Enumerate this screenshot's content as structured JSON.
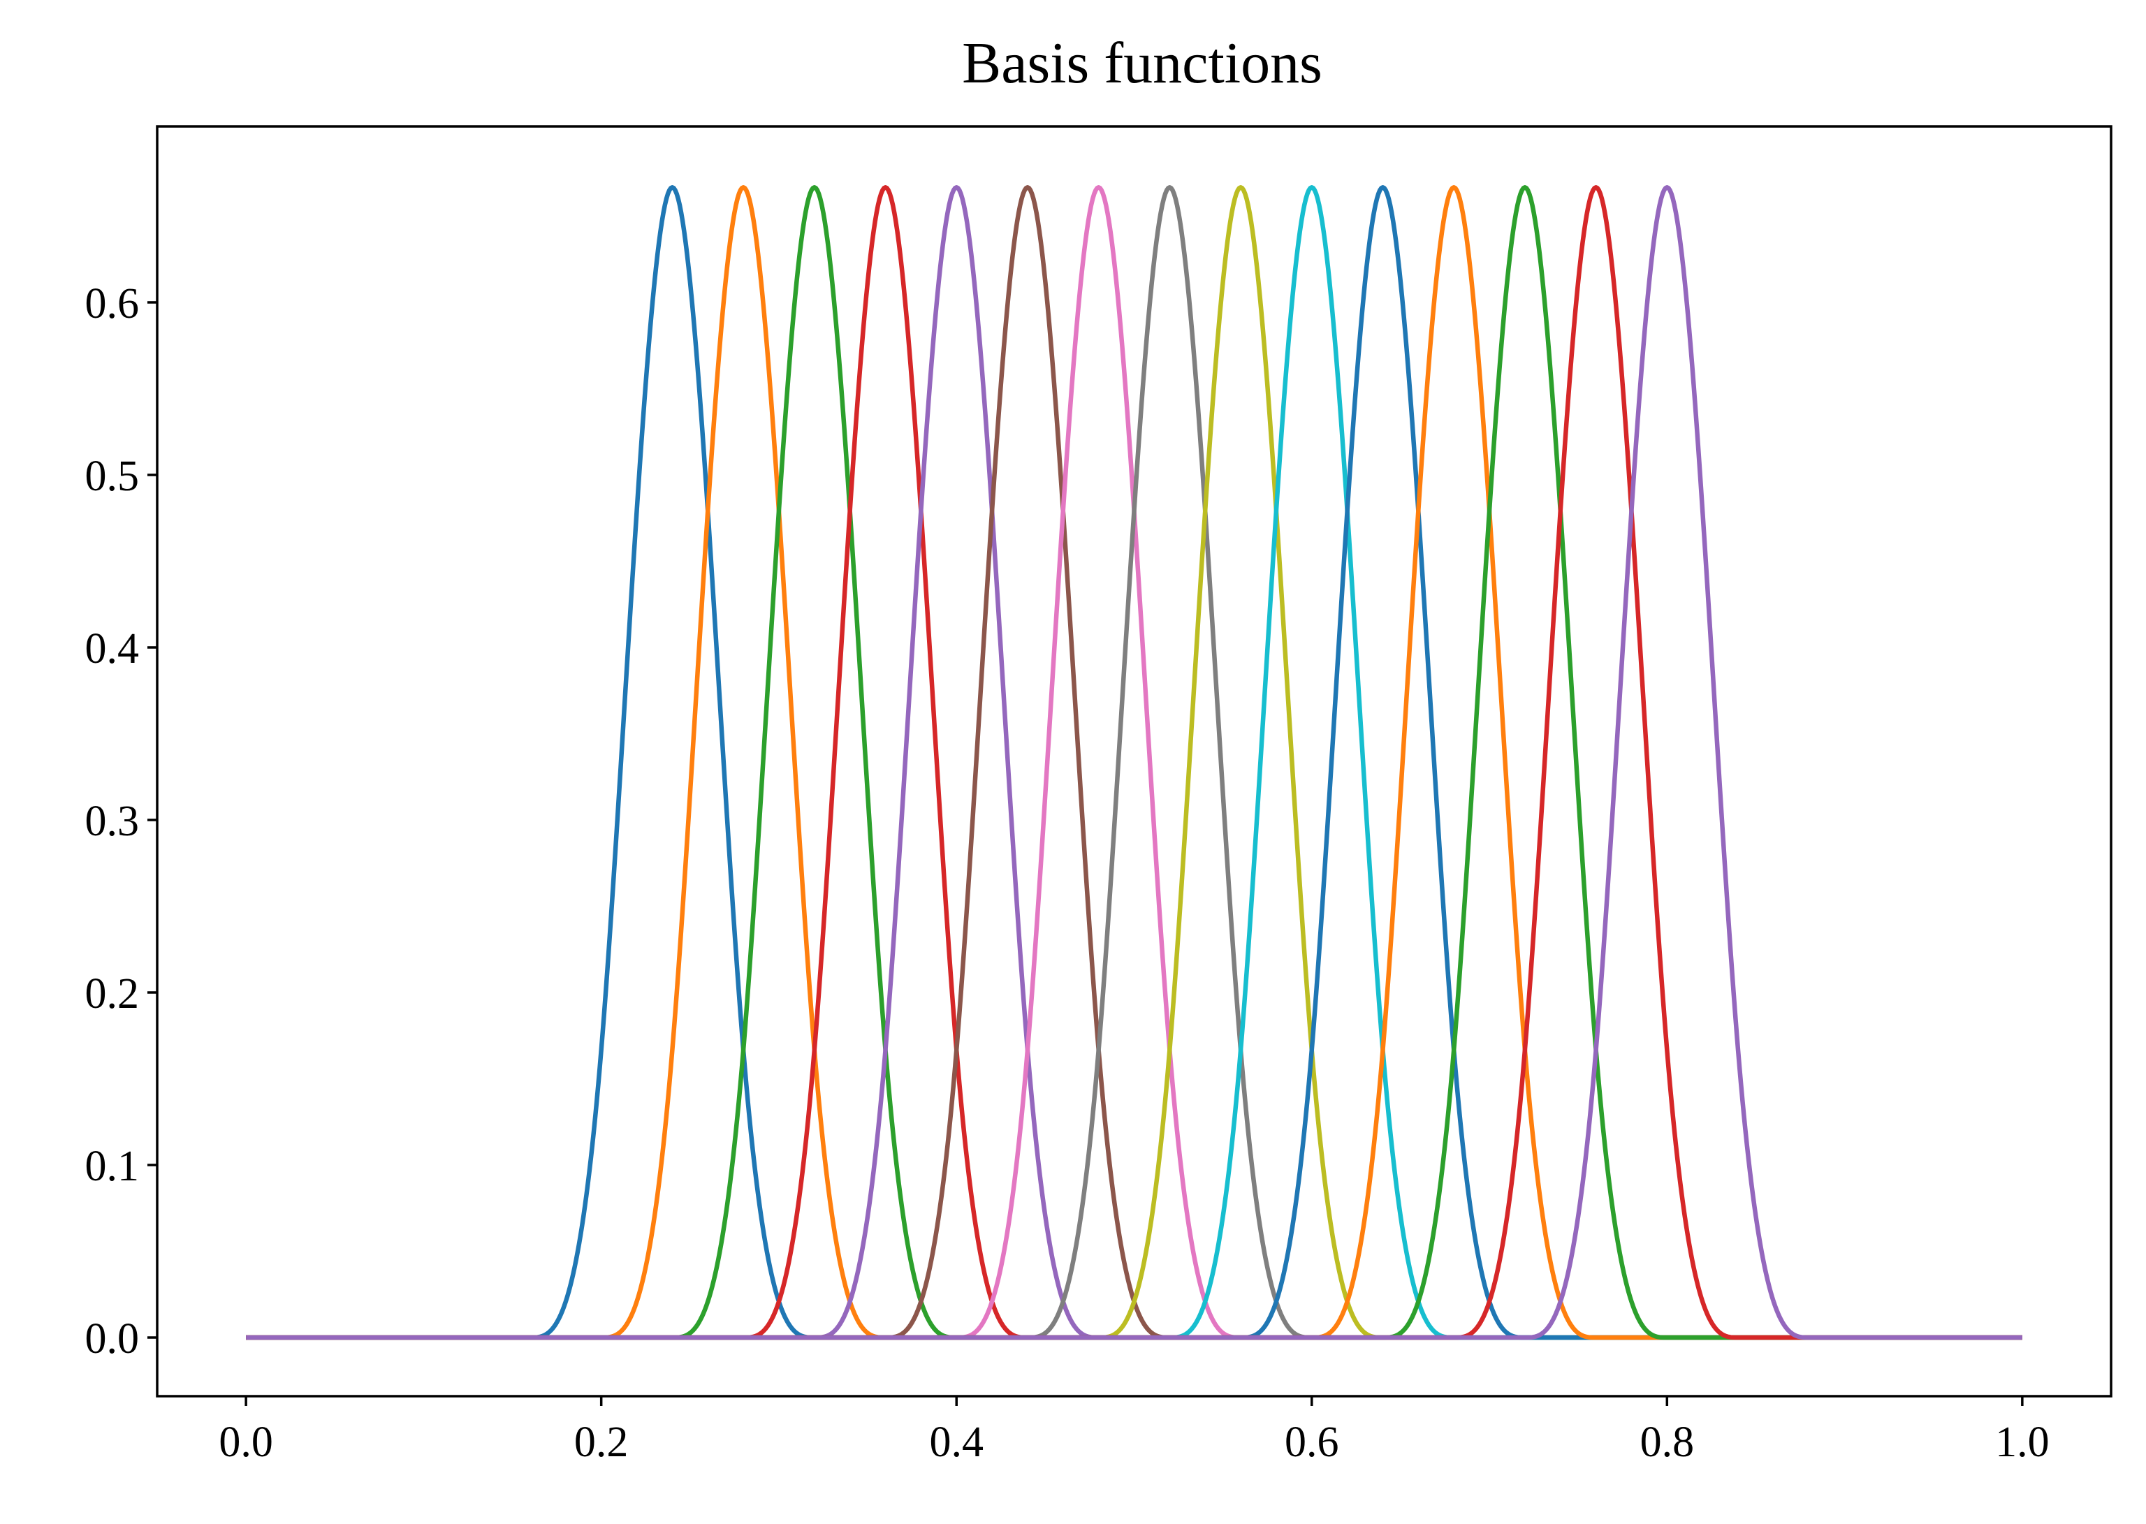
{
  "chart_data": {
    "type": "line",
    "title": "Basis functions",
    "xlabel": "",
    "ylabel": "",
    "xlim": [
      -0.05,
      1.05
    ],
    "ylim": [
      -0.034,
      0.702
    ],
    "grid": false,
    "legend": "none",
    "x_ticks": [
      {
        "value": 0.0,
        "label": "0.0"
      },
      {
        "value": 0.2,
        "label": "0.2"
      },
      {
        "value": 0.4,
        "label": "0.4"
      },
      {
        "value": 0.6,
        "label": "0.6"
      },
      {
        "value": 0.8,
        "label": "0.8"
      },
      {
        "value": 1.0,
        "label": "1.0"
      }
    ],
    "y_ticks": [
      {
        "value": 0.0,
        "label": "0.0"
      },
      {
        "value": 0.1,
        "label": "0.1"
      },
      {
        "value": 0.2,
        "label": "0.2"
      },
      {
        "value": 0.3,
        "label": "0.3"
      },
      {
        "value": 0.4,
        "label": "0.4"
      },
      {
        "value": 0.5,
        "label": "0.5"
      },
      {
        "value": 0.6,
        "label": "0.6"
      }
    ],
    "x_range": [
      0.0,
      1.0
    ],
    "basis": {
      "kind": "cubic B-spline",
      "knot_spacing": 0.04,
      "peak_value": 0.6667
    },
    "series": [
      {
        "center": 0.24,
        "color": "#1f77b4"
      },
      {
        "center": 0.28,
        "color": "#ff7f0e"
      },
      {
        "center": 0.32,
        "color": "#2ca02c"
      },
      {
        "center": 0.36,
        "color": "#d62728"
      },
      {
        "center": 0.4,
        "color": "#9467bd"
      },
      {
        "center": 0.44,
        "color": "#8c564b"
      },
      {
        "center": 0.48,
        "color": "#e377c2"
      },
      {
        "center": 0.52,
        "color": "#7f7f7f"
      },
      {
        "center": 0.56,
        "color": "#bcbd22"
      },
      {
        "center": 0.6,
        "color": "#17becf"
      },
      {
        "center": 0.64,
        "color": "#1f77b4"
      },
      {
        "center": 0.68,
        "color": "#ff7f0e"
      },
      {
        "center": 0.72,
        "color": "#2ca02c"
      },
      {
        "center": 0.76,
        "color": "#d62728"
      },
      {
        "center": 0.8,
        "color": "#9467bd"
      }
    ]
  }
}
